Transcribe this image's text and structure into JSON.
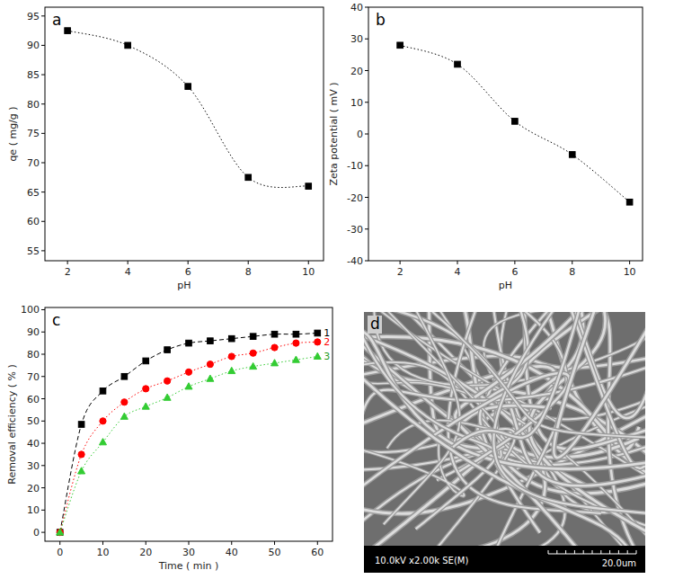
{
  "chart_data": [
    {
      "type": "line",
      "panel": "a",
      "x_label": "pH",
      "y_label": "qe ( mg/g )",
      "x": [
        2,
        4,
        6,
        8,
        10
      ],
      "values": [
        92.5,
        90,
        83,
        67.5,
        66
      ],
      "color": "#000000",
      "marker": "square",
      "line_style": "dotted",
      "xlim": [
        1.25,
        10.5
      ],
      "xticks": [
        2,
        4,
        6,
        8,
        10
      ],
      "ylim": [
        53.3,
        96.5
      ],
      "yticks": [
        55,
        60,
        65,
        70,
        75,
        80,
        85,
        90,
        95
      ]
    },
    {
      "type": "line",
      "panel": "b",
      "x_label": "pH",
      "y_label": "Zeta potential ( mV )",
      "x": [
        2,
        4,
        6,
        8,
        10
      ],
      "values": [
        28,
        22,
        4,
        -6.5,
        -21.5
      ],
      "color": "#000000",
      "marker": "square",
      "line_style": "dotted",
      "xlim": [
        0.9,
        10.45
      ],
      "xticks": [
        2,
        4,
        6,
        8,
        10
      ],
      "ylim": [
        -40,
        40
      ],
      "yticks": [
        -40,
        -30,
        -20,
        -10,
        0,
        10,
        20,
        30,
        40
      ]
    },
    {
      "type": "line",
      "panel": "c",
      "x_label": "Time ( min )",
      "y_label": "Removal efficiency ( % )",
      "x": [
        0,
        5,
        10,
        15,
        20,
        25,
        30,
        35,
        40,
        45,
        50,
        55,
        60
      ],
      "series": [
        {
          "name": "1",
          "color": "#000000",
          "marker": "square",
          "line_style": "dashed",
          "values": [
            0,
            48.5,
            63.5,
            70,
            77,
            82,
            85,
            86,
            87,
            88,
            89,
            89,
            89.5
          ]
        },
        {
          "name": "2",
          "color": "#ff0000",
          "marker": "circle",
          "line_style": "dotted",
          "values": [
            0,
            35,
            50,
            58.5,
            64.5,
            68,
            72,
            75.5,
            79,
            80.5,
            83,
            85,
            85.5
          ]
        },
        {
          "name": "3",
          "color": "#33cc33",
          "marker": "triangle",
          "line_style": "dotted",
          "values": [
            0,
            27.5,
            40.5,
            52,
            56.5,
            60.5,
            65.5,
            69,
            72.5,
            74.5,
            76,
            77.5,
            79
          ]
        }
      ],
      "legend": "right",
      "xlim": [
        -3.5,
        63.5
      ],
      "xticks": [
        0,
        10,
        20,
        30,
        40,
        50,
        60
      ],
      "ylim": [
        -4,
        101
      ],
      "yticks": [
        0,
        10,
        20,
        30,
        40,
        50,
        60,
        70,
        80,
        90,
        100
      ]
    },
    {
      "type": "image",
      "panel": "d",
      "annotations": [
        "10.0kV x2.00k SE(M)",
        "20.0um"
      ]
    }
  ]
}
